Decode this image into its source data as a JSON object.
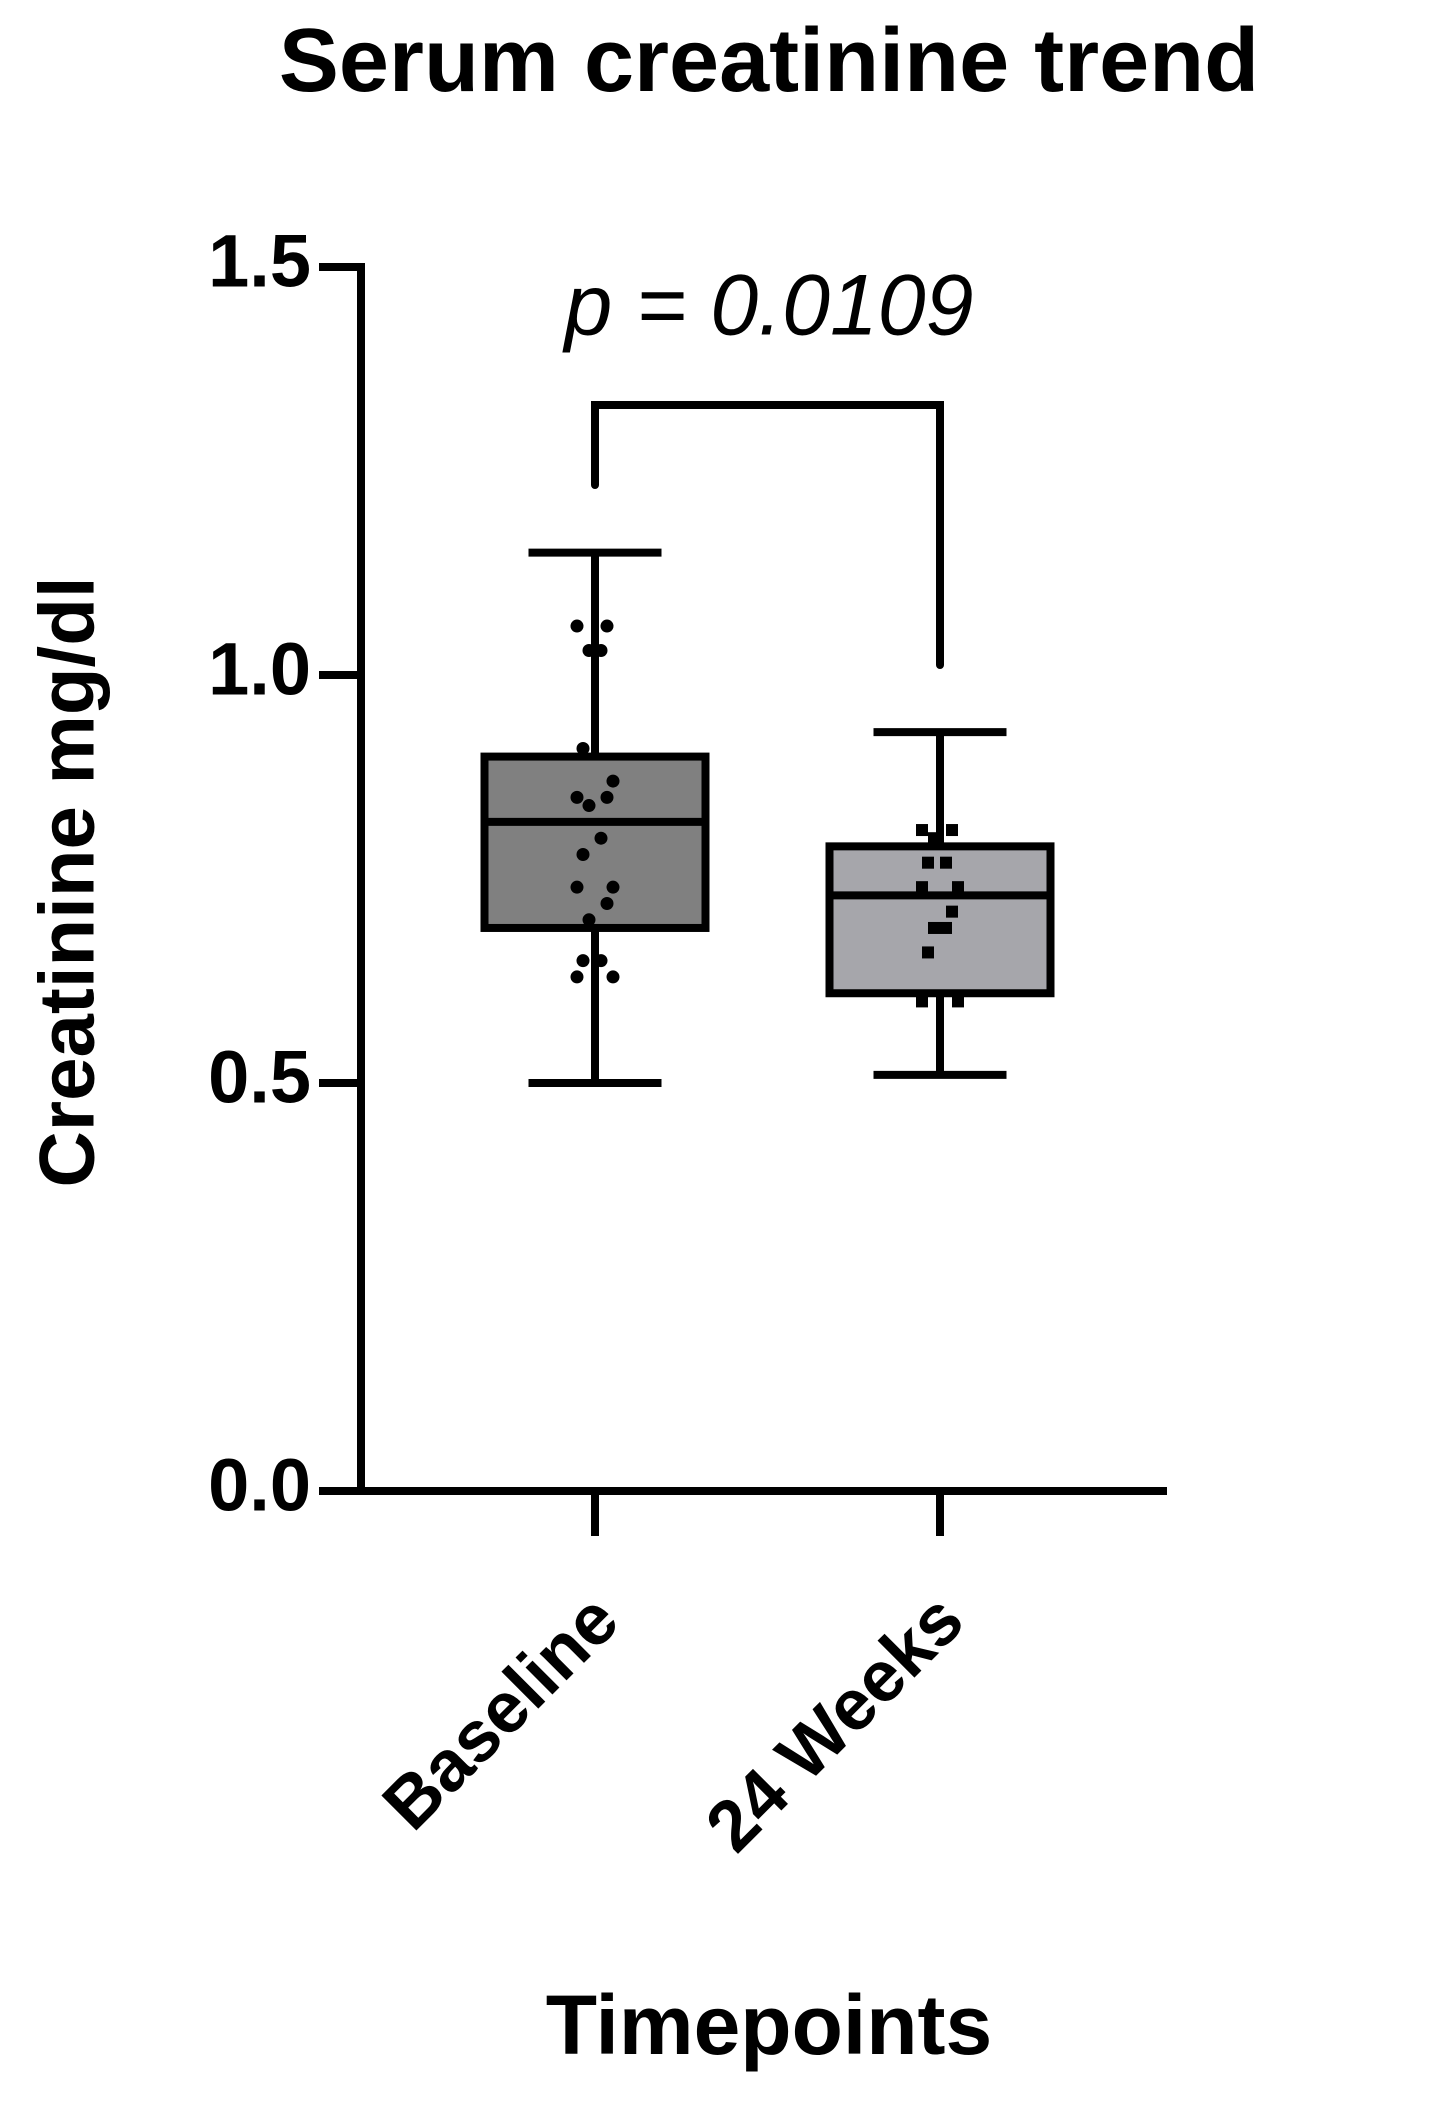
{
  "chart_data": {
    "type": "box",
    "title": "Serum creatinine trend",
    "x_label": "Timepoints",
    "y_label": "Creatinine mg/dl",
    "annotation": "p = 0.0109",
    "categories": [
      "Baseline",
      "24 Weeks"
    ],
    "boxes": [
      {
        "min": 0.5,
        "q1": 0.69,
        "median": 0.82,
        "q3": 0.9,
        "max": 1.15,
        "color": "#808080",
        "marker": "circle",
        "points": [
          1.06,
          1.06,
          1.03,
          1.03,
          0.91,
          0.87,
          0.85,
          0.85,
          0.84,
          0.8,
          0.78,
          0.74,
          0.74,
          0.72,
          0.7,
          0.65,
          0.65,
          0.63,
          0.63
        ]
      },
      {
        "min": 0.51,
        "q1": 0.61,
        "median": 0.73,
        "q3": 0.79,
        "max": 0.93,
        "color": "#a6a6ab",
        "marker": "square",
        "points": [
          0.81,
          0.81,
          0.8,
          0.77,
          0.77,
          0.74,
          0.74,
          0.71,
          0.69,
          0.69,
          0.66,
          0.6,
          0.6
        ]
      }
    ],
    "ylim": [
      0,
      1.5
    ],
    "yticks": [
      {
        "value": 0,
        "label": "0.0"
      },
      0.5,
      {
        "value": 1,
        "label": "1.0"
      },
      1.5
    ]
  }
}
